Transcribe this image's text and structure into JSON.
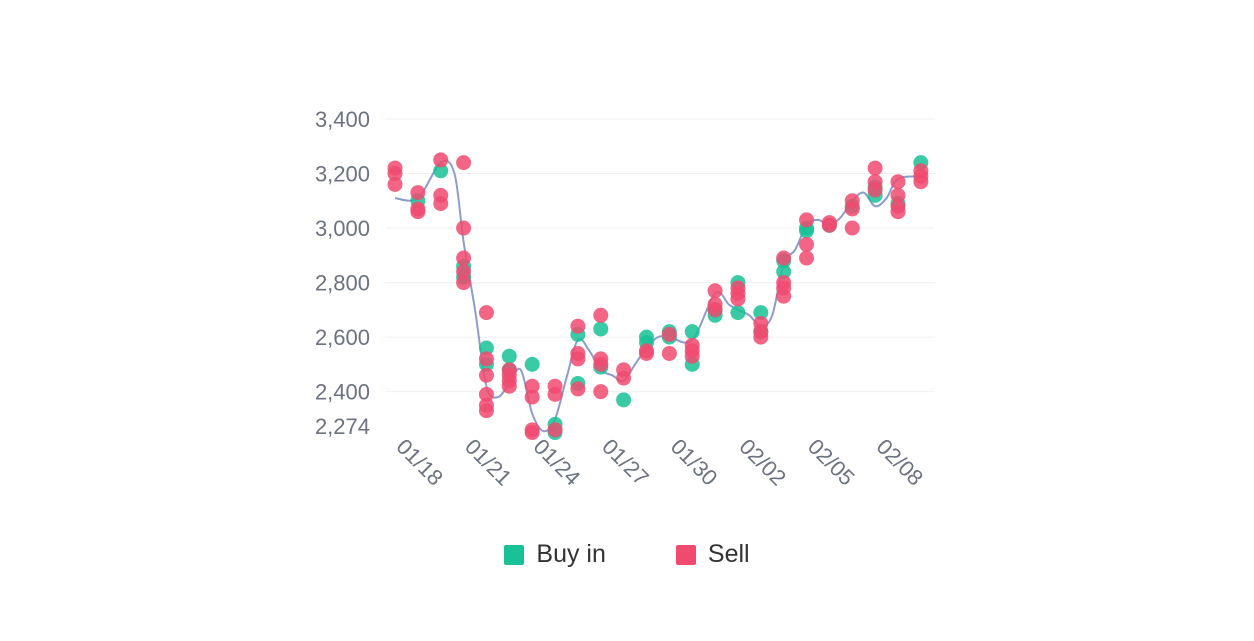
{
  "colors": {
    "buy": "#19c197",
    "sell": "#f04a6f",
    "line": "#8e9ccb",
    "tick": "#6b7280",
    "grid": "#f0f0f0"
  },
  "legend": [
    {
      "key": "buy",
      "label": "Buy in"
    },
    {
      "key": "sell",
      "label": "Sell"
    }
  ],
  "chart_data": {
    "type": "scatter",
    "title": "",
    "xlabel": "",
    "ylabel": "",
    "grid": true,
    "legend_position": "bottom-center",
    "x_tick_labels": [
      "01/18",
      "01/21",
      "01/24",
      "01/27",
      "01/30",
      "02/02",
      "02/05",
      "02/08"
    ],
    "y_ticks": [
      2274,
      2400,
      2600,
      2800,
      3000,
      3200,
      3400
    ],
    "y_tick_labels": [
      "2,274",
      "2,400",
      "2,600",
      "2,800",
      "3,000",
      "3,200",
      "3,400"
    ],
    "x_range": [
      0,
      23.4
    ],
    "y_range": [
      2274,
      3400
    ],
    "series": [
      {
        "name": "Buy in",
        "points": [
          [
            1,
            3100
          ],
          [
            2,
            3210
          ],
          [
            3,
            2860
          ],
          [
            3,
            2820
          ],
          [
            4,
            2560
          ],
          [
            4,
            2500
          ],
          [
            5,
            2530
          ],
          [
            5,
            2480
          ],
          [
            6,
            2500
          ],
          [
            7,
            2250
          ],
          [
            7,
            2280
          ],
          [
            8,
            2610
          ],
          [
            8,
            2430
          ],
          [
            9,
            2630
          ],
          [
            9,
            2490
          ],
          [
            10,
            2370
          ],
          [
            11,
            2600
          ],
          [
            11,
            2580
          ],
          [
            12,
            2620
          ],
          [
            12,
            2600
          ],
          [
            13,
            2620
          ],
          [
            13,
            2500
          ],
          [
            14,
            2680
          ],
          [
            14,
            2700
          ],
          [
            15,
            2800
          ],
          [
            15,
            2690
          ],
          [
            16,
            2690
          ],
          [
            16,
            2620
          ],
          [
            17,
            2840
          ],
          [
            17,
            2880
          ],
          [
            18,
            2990
          ],
          [
            18,
            3000
          ],
          [
            19,
            3010
          ],
          [
            20,
            3080
          ],
          [
            21,
            3150
          ],
          [
            21,
            3120
          ],
          [
            22,
            3090
          ],
          [
            23,
            3240
          ]
        ]
      },
      {
        "name": "Sell",
        "points": [
          [
            0,
            3220
          ],
          [
            0,
            3200
          ],
          [
            0,
            3160
          ],
          [
            1,
            3130
          ],
          [
            1,
            3070
          ],
          [
            1,
            3060
          ],
          [
            2,
            3250
          ],
          [
            2,
            3120
          ],
          [
            2,
            3090
          ],
          [
            3,
            3240
          ],
          [
            3,
            3000
          ],
          [
            3,
            2890
          ],
          [
            3,
            2840
          ],
          [
            3,
            2800
          ],
          [
            4,
            2690
          ],
          [
            4,
            2460
          ],
          [
            4,
            2390
          ],
          [
            4,
            2350
          ],
          [
            4,
            2330
          ],
          [
            4,
            2520
          ],
          [
            5,
            2480
          ],
          [
            5,
            2460
          ],
          [
            5,
            2440
          ],
          [
            5,
            2420
          ],
          [
            6,
            2420
          ],
          [
            6,
            2380
          ],
          [
            6,
            2260
          ],
          [
            6,
            2250
          ],
          [
            7,
            2420
          ],
          [
            7,
            2390
          ],
          [
            7,
            2260
          ],
          [
            8,
            2640
          ],
          [
            8,
            2540
          ],
          [
            8,
            2520
          ],
          [
            8,
            2410
          ],
          [
            9,
            2680
          ],
          [
            9,
            2520
          ],
          [
            9,
            2500
          ],
          [
            9,
            2400
          ],
          [
            10,
            2480
          ],
          [
            10,
            2450
          ],
          [
            11,
            2540
          ],
          [
            11,
            2550
          ],
          [
            12,
            2610
          ],
          [
            12,
            2540
          ],
          [
            13,
            2570
          ],
          [
            13,
            2550
          ],
          [
            13,
            2530
          ],
          [
            14,
            2770
          ],
          [
            14,
            2720
          ],
          [
            14,
            2700
          ],
          [
            15,
            2780
          ],
          [
            15,
            2760
          ],
          [
            15,
            2740
          ],
          [
            16,
            2650
          ],
          [
            16,
            2620
          ],
          [
            16,
            2600
          ],
          [
            17,
            2890
          ],
          [
            17,
            2800
          ],
          [
            17,
            2780
          ],
          [
            17,
            2750
          ],
          [
            18,
            3030
          ],
          [
            18,
            2940
          ],
          [
            18,
            2890
          ],
          [
            19,
            3020
          ],
          [
            19,
            3010
          ],
          [
            20,
            3100
          ],
          [
            20,
            3070
          ],
          [
            20,
            3000
          ],
          [
            21,
            3220
          ],
          [
            21,
            3170
          ],
          [
            21,
            3140
          ],
          [
            22,
            3170
          ],
          [
            22,
            3120
          ],
          [
            22,
            3080
          ],
          [
            22,
            3060
          ],
          [
            23,
            3210
          ],
          [
            23,
            3190
          ],
          [
            23,
            3170
          ]
        ]
      },
      {
        "name": "",
        "kind": "line",
        "points": [
          [
            0,
            3110
          ],
          [
            1,
            3110
          ],
          [
            2,
            3240
          ],
          [
            2.6,
            3200
          ],
          [
            3,
            2950
          ],
          [
            3.5,
            2700
          ],
          [
            4,
            2420
          ],
          [
            4.5,
            2380
          ],
          [
            5,
            2430
          ],
          [
            5.5,
            2480
          ],
          [
            6,
            2320
          ],
          [
            6.5,
            2255
          ],
          [
            7,
            2300
          ],
          [
            7.5,
            2450
          ],
          [
            8,
            2590
          ],
          [
            8.5,
            2550
          ],
          [
            9,
            2480
          ],
          [
            9.5,
            2460
          ],
          [
            10,
            2440
          ],
          [
            10.5,
            2500
          ],
          [
            11,
            2560
          ],
          [
            11.5,
            2600
          ],
          [
            12,
            2600
          ],
          [
            13,
            2590
          ],
          [
            14,
            2760
          ],
          [
            14.6,
            2720
          ],
          [
            15,
            2700
          ],
          [
            15.5,
            2680
          ],
          [
            16,
            2640
          ],
          [
            16.5,
            2680
          ],
          [
            17,
            2870
          ],
          [
            17.5,
            2920
          ],
          [
            18,
            3010
          ],
          [
            18.5,
            3030
          ],
          [
            19,
            3010
          ],
          [
            19.5,
            3040
          ],
          [
            20,
            3100
          ],
          [
            20.5,
            3130
          ],
          [
            21,
            3080
          ],
          [
            21.5,
            3110
          ],
          [
            22,
            3180
          ],
          [
            23,
            3190
          ]
        ]
      }
    ]
  }
}
